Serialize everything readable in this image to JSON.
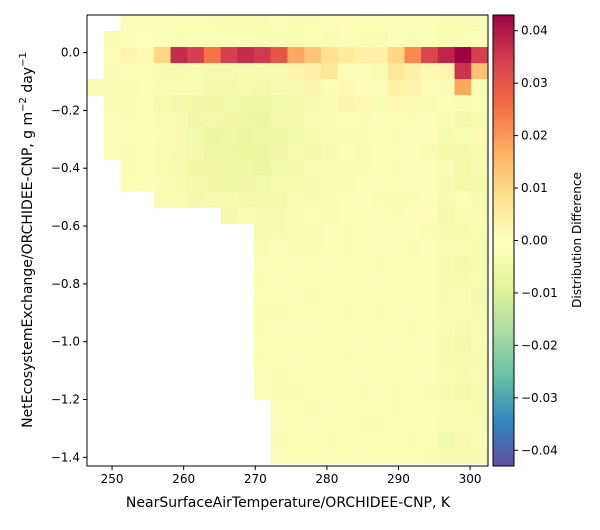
{
  "chart_data": {
    "type": "heatmap",
    "xlabel": "NearSurfaceAirTemperature/ORCHIDEE-CNP,  K",
    "ylabel_main": "NetEcosystemExchange/ORCHIDEE-CNP,  g m",
    "ylabel_sup1": "−2",
    "ylabel_mid": " day",
    "ylabel_sup2": "−1",
    "colorbar_label": "Distribution Difference",
    "xlim": [
      246.5,
      302.5
    ],
    "ylim": [
      -1.43,
      0.13
    ],
    "xticks": [
      250,
      260,
      270,
      280,
      290,
      300
    ],
    "yticks": [
      0.0,
      -0.2,
      -0.4,
      -0.6,
      -0.8,
      -1.0,
      -1.2,
      -1.4
    ],
    "xtick_labels": [
      "250",
      "260",
      "270",
      "280",
      "290",
      "300"
    ],
    "ytick_labels": [
      "0.0",
      "−0.2",
      "−0.4",
      "−0.6",
      "−0.8",
      "−1.0",
      "−1.2",
      "−1.4"
    ],
    "colorbar_range": [
      -0.043,
      0.043
    ],
    "colorbar_ticks": [
      0.04,
      0.03,
      0.02,
      0.01,
      0.0,
      -0.01,
      -0.02,
      -0.03,
      -0.04
    ],
    "colorbar_tick_labels": [
      "0.04",
      "0.03",
      "0.02",
      "0.01",
      "0.00",
      "−0.01",
      "−0.02",
      "−0.03",
      "−0.04"
    ],
    "colormap": "Spectral_r",
    "x_bin_start": 246.5,
    "x_bin_width": 2.333,
    "x_bin_count": 24,
    "y_bin_top": 0.13,
    "y_bin_height": 0.0554,
    "y_bin_count": 28,
    "cells": [
      [
        255,
        0.05,
        -0.001
      ],
      [
        255,
        0.0,
        0.002
      ],
      [
        255,
        -0.05,
        -0.002
      ],
      [
        255,
        -0.1,
        -0.002
      ],
      [
        255,
        -0.15,
        -0.002
      ],
      [
        255,
        -0.2,
        -0.002
      ],
      [
        255,
        -0.25,
        -0.002
      ],
      [
        255,
        -0.3,
        -0.002
      ],
      [
        255,
        -0.35,
        -0.002
      ],
      [
        255,
        -0.4,
        -0.002
      ],
      [
        260,
        0.0,
        0.037
      ],
      [
        262,
        0.0,
        0.034
      ],
      [
        264,
        0.0,
        0.025
      ],
      [
        266,
        0.0,
        0.034
      ],
      [
        268,
        0.0,
        0.037
      ],
      [
        270,
        0.0,
        0.038
      ],
      [
        272,
        0.0,
        0.035
      ],
      [
        274,
        0.0,
        0.03
      ],
      [
        258,
        0.0,
        0.018
      ],
      [
        256,
        0.0,
        0.01
      ],
      [
        253,
        0.0,
        0.003
      ],
      [
        276,
        0.0,
        0.018
      ],
      [
        278,
        0.0,
        0.013
      ],
      [
        280,
        0.0,
        0.008
      ],
      [
        283,
        0.0,
        0.005
      ],
      [
        286,
        0.0,
        0.004
      ],
      [
        288,
        0.0,
        0.004
      ],
      [
        290,
        0.0,
        0.01
      ],
      [
        292,
        0.0,
        0.022
      ],
      [
        295,
        0.0,
        0.033
      ],
      [
        297,
        0.0,
        0.038
      ],
      [
        299,
        0.0,
        0.043
      ],
      [
        301,
        0.0,
        0.034
      ],
      [
        299,
        -0.05,
        0.036
      ],
      [
        301,
        -0.05,
        0.014
      ],
      [
        299,
        -0.1,
        0.018
      ],
      [
        297,
        -0.05,
        0.003
      ],
      [
        290,
        -0.05,
        0.006
      ],
      [
        292,
        -0.05,
        0.004
      ],
      [
        295,
        -0.05,
        0.002
      ],
      [
        278,
        -0.05,
        0.004
      ],
      [
        280,
        -0.05,
        0.006
      ],
      [
        276,
        -0.05,
        0.003
      ],
      [
        278,
        -0.1,
        0.003
      ],
      [
        283,
        -0.1,
        0.002
      ],
      [
        290,
        -0.1,
        0.004
      ],
      [
        292,
        -0.1,
        0.003
      ],
      [
        283,
        -0.15,
        0.003
      ],
      [
        286,
        -0.15,
        0.002
      ],
      [
        290,
        -0.2,
        0.002
      ]
    ]
  }
}
